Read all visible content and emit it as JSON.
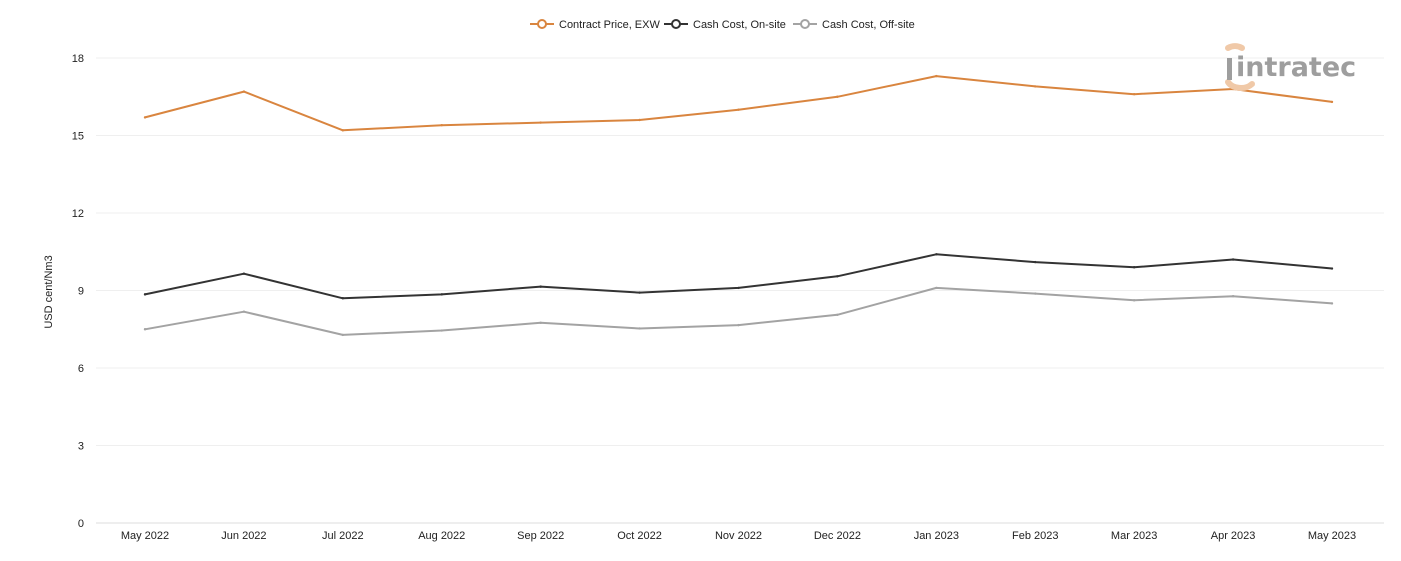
{
  "chart_data": {
    "type": "line",
    "title": "",
    "xlabel": "",
    "ylabel": "USD cent/Nm3",
    "categories": [
      "May 2022",
      "Jun 2022",
      "Jul 2022",
      "Aug 2022",
      "Sep 2022",
      "Oct 2022",
      "Nov 2022",
      "Dec 2022",
      "Jan 2023",
      "Feb 2023",
      "Mar 2023",
      "Apr 2023",
      "May 2023"
    ],
    "ylim": [
      0,
      18
    ],
    "yticks": [
      0,
      3,
      6,
      9,
      12,
      15,
      18
    ],
    "grid": "horizontal",
    "legend_position": "top-center",
    "series": [
      {
        "name": "Contract Price, EXW",
        "color": "#d9853f",
        "values": [
          15.7,
          16.7,
          15.2,
          15.4,
          15.5,
          15.6,
          16.0,
          16.5,
          17.3,
          16.9,
          16.6,
          16.8,
          16.3
        ]
      },
      {
        "name": "Cash Cost, On-site",
        "color": "#333333",
        "values": [
          8.85,
          9.65,
          8.7,
          8.85,
          9.15,
          8.92,
          9.1,
          9.55,
          10.4,
          10.1,
          9.9,
          10.2,
          9.85
        ]
      },
      {
        "name": "Cash Cost, Off-site",
        "color": "#a3a3a3",
        "values": [
          7.5,
          8.18,
          7.28,
          7.45,
          7.75,
          7.53,
          7.66,
          8.06,
          9.1,
          8.88,
          8.62,
          8.78,
          8.5
        ]
      }
    ]
  },
  "logo": {
    "text": "intratec",
    "color": "#9e9e9e",
    "accent": "#f0c9a8"
  }
}
